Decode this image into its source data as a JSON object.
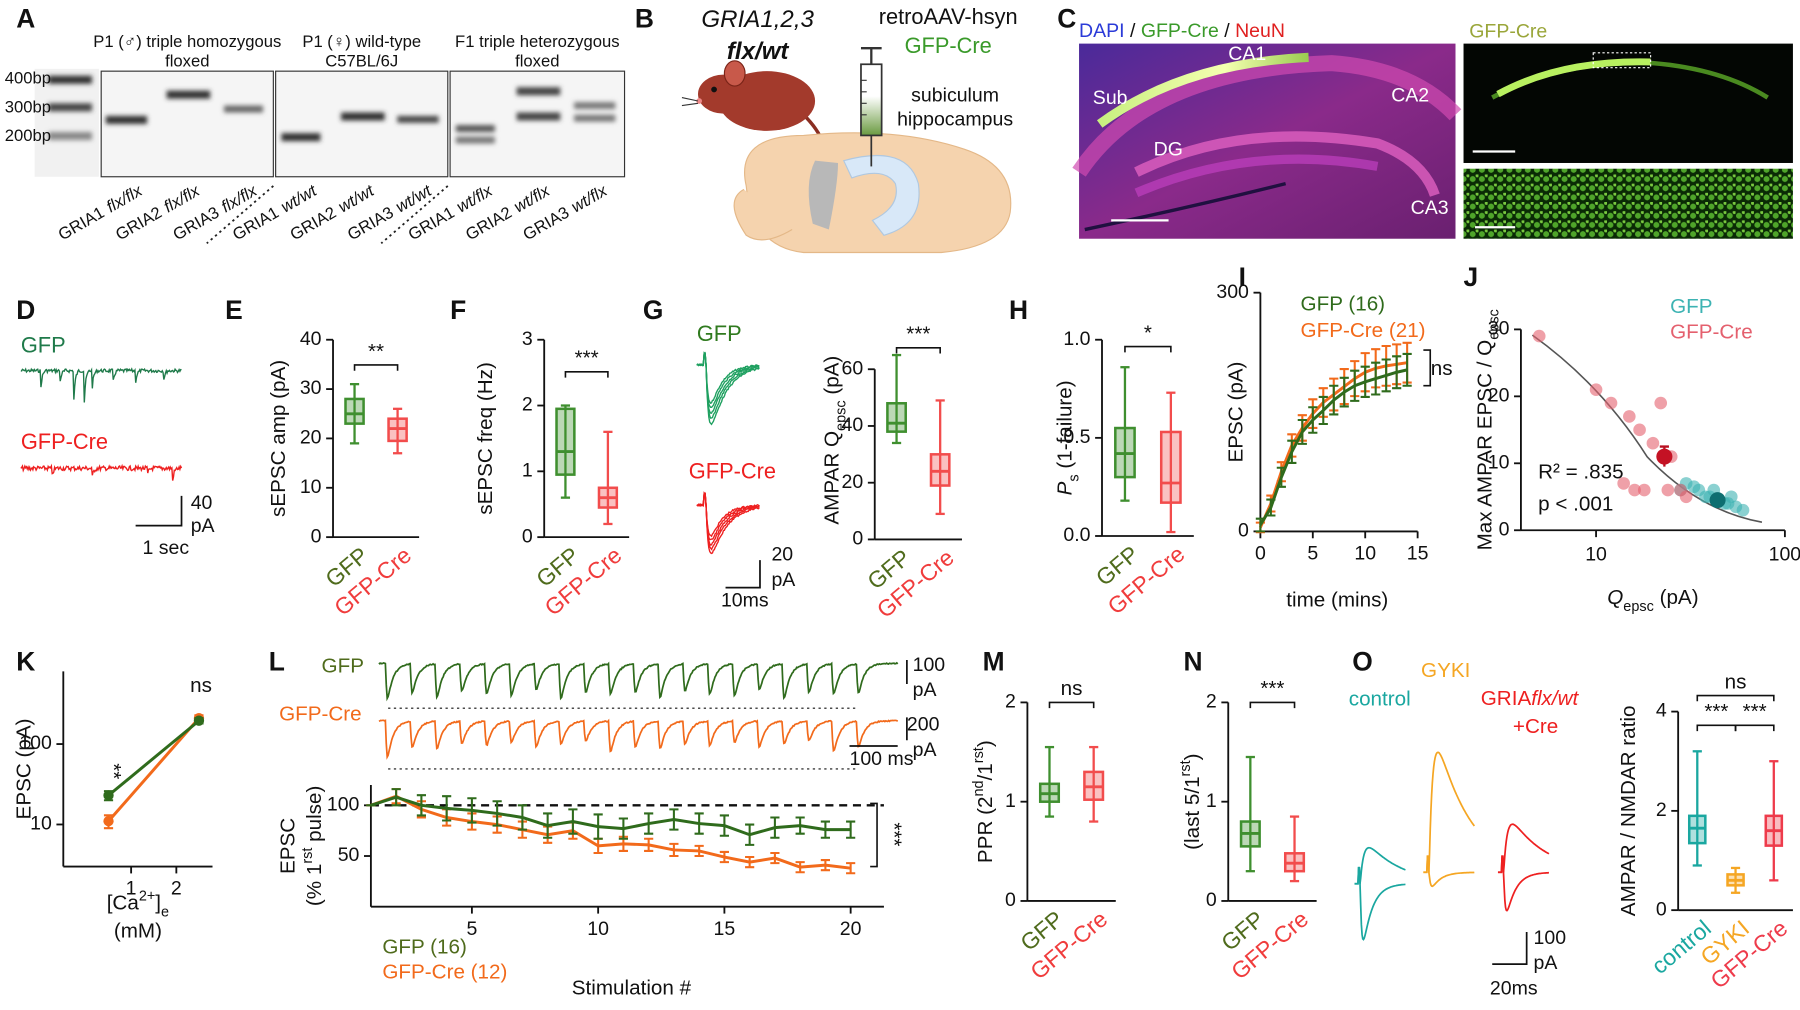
{
  "letters": [
    "A",
    "B",
    "C",
    "D",
    "E",
    "F",
    "G",
    "H",
    "I",
    "J",
    "K",
    "L",
    "M",
    "N",
    "O"
  ],
  "panels": {
    "A": {
      "ladder": [
        "400bp",
        "300bp",
        "200bp"
      ],
      "groups": [
        {
          "title": [
            "P1 (♂) triple homozygous",
            "floxed"
          ],
          "lanes": [
            {
              "gene": "GRIA1",
              "genotype": "flx/flx"
            },
            {
              "gene": "GRIA2",
              "genotype": "flx/flx"
            },
            {
              "gene": "GRIA3",
              "genotype": "flx/flx"
            }
          ]
        },
        {
          "title": [
            "P1 (♀) wild-type",
            "C57BL/6J"
          ],
          "lanes": [
            {
              "gene": "GRIA1",
              "genotype": "wt/wt"
            },
            {
              "gene": "GRIA2",
              "genotype": "wt/wt"
            },
            {
              "gene": "GRIA3",
              "genotype": "wt/wt"
            }
          ]
        },
        {
          "title": [
            "F1 triple heterozygous",
            "floxed"
          ],
          "lanes": [
            {
              "gene": "GRIA1",
              "genotype": "wt/flx"
            },
            {
              "gene": "GRIA2",
              "genotype": "wt/flx"
            },
            {
              "gene": "GRIA3",
              "genotype": "wt/flx"
            }
          ]
        }
      ]
    },
    "B": {
      "mouse": [
        "GRIA1,2,3",
        "flx/wt"
      ],
      "vector": [
        "retroAAV-hsyn",
        "GFP-Cre"
      ],
      "target": [
        "subiculum",
        "hippocampus"
      ]
    },
    "C": {
      "stain": [
        "DAPI",
        " / ",
        "GFP-Cre",
        " / ",
        "NeuN"
      ],
      "regions": [
        "CA1",
        "Sub",
        "CA2",
        "DG",
        "CA3"
      ],
      "inset_title": "GFP-Cre"
    },
    "D": {
      "traces": [
        "GFP",
        "GFP-Cre"
      ],
      "scale": [
        "40",
        "pA",
        "1 sec"
      ]
    },
    "G": {
      "traces": [
        "GFP",
        "GFP-Cre"
      ],
      "scale": [
        "20",
        "pA",
        "10ms"
      ]
    },
    "L": {
      "traces": [
        "GFP",
        "GFP-Cre"
      ],
      "scale": [
        "100",
        "pA",
        "200",
        "pA",
        "100 ms"
      ]
    },
    "O": {
      "traces": [
        "control",
        "GYKI",
        "GRIA",
        "flx/wt",
        "+Cre"
      ],
      "scale": [
        "100",
        "pA",
        "20ms"
      ]
    }
  },
  "chart_data": [
    {
      "type": "box",
      "ylabel": [
        {
          "text": "sEPSC amp (pA)"
        }
      ],
      "categories": [
        "GFP",
        "GFP-Cre"
      ],
      "colors": [
        "#3f8f2f",
        "#f24c4c"
      ],
      "label_colors": [
        "#4f6b1c",
        "#f03c3c"
      ],
      "ylim": [
        0,
        40
      ],
      "yticks": [
        0,
        10,
        20,
        30,
        40
      ],
      "boxes": [
        {
          "min": 19,
          "q1": 23,
          "median": 25,
          "q3": 28,
          "max": 31
        },
        {
          "min": 17,
          "q1": 19.5,
          "median": 22,
          "q3": 24,
          "max": 26
        }
      ],
      "significance": [
        "**"
      ]
    },
    {
      "type": "box",
      "ylabel": [
        {
          "text": "sEPSC freq (Hz)"
        }
      ],
      "categories": [
        "GFP",
        "GFP-Cre"
      ],
      "colors": [
        "#3f8f2f",
        "#f24c4c"
      ],
      "label_colors": [
        "#4f6b1c",
        "#f03c3c"
      ],
      "ylim": [
        0,
        3
      ],
      "yticks": [
        0,
        1,
        2,
        3
      ],
      "boxes": [
        {
          "min": 0.6,
          "q1": 0.95,
          "median": 1.3,
          "q3": 1.95,
          "max": 2.0
        },
        {
          "min": 0.2,
          "q1": 0.45,
          "median": 0.6,
          "q3": 0.75,
          "max": 1.6
        }
      ],
      "significance": [
        "***"
      ]
    },
    {
      "type": "box",
      "ylabel": [
        {
          "text": "AMPAR Q"
        },
        {
          "text": "epsc",
          "shift": "sub"
        },
        {
          "text": " (pA)"
        }
      ],
      "categories": [
        "GFP",
        "GFP-Cre"
      ],
      "colors": [
        "#3f8f2f",
        "#f24c4c"
      ],
      "label_colors": [
        "#4f6b1c",
        "#f03c3c"
      ],
      "ylim": [
        0,
        70
      ],
      "yticks": [
        0,
        20,
        40,
        60
      ],
      "boxes": [
        {
          "min": 34,
          "q1": 38,
          "median": 41,
          "q3": 48,
          "max": 65
        },
        {
          "min": 9,
          "q1": 19,
          "median": 24,
          "q3": 30,
          "max": 49
        }
      ],
      "significance": [
        "***"
      ]
    },
    {
      "type": "box",
      "ylabel": [
        {
          "text": "P",
          "style": "italic"
        },
        {
          "text": "s",
          "shift": "sub"
        },
        {
          "text": " (1-failure)"
        }
      ],
      "categories": [
        "GFP",
        "GFP-Cre"
      ],
      "colors": [
        "#3f8f2f",
        "#f24c4c"
      ],
      "label_colors": [
        "#4f6b1c",
        "#f03c3c"
      ],
      "ylim": [
        0,
        1
      ],
      "yticks": [
        {
          "value": 0,
          "label": "0.0"
        },
        {
          "value": 0.5,
          "label": "0.5"
        },
        {
          "value": 1,
          "label": "1.0"
        }
      ],
      "boxes": [
        {
          "min": 0.18,
          "q1": 0.3,
          "median": 0.42,
          "q3": 0.55,
          "max": 0.86
        },
        {
          "min": 0.02,
          "q1": 0.17,
          "median": 0.27,
          "q3": 0.53,
          "max": 0.73
        }
      ],
      "significance": [
        "*"
      ]
    },
    {
      "type": "line",
      "ylabel": [
        {
          "text": "EPSC (pA)"
        }
      ],
      "xlabel": [
        {
          "text": "time (mins)"
        }
      ],
      "x": [
        0,
        1,
        2,
        3,
        4,
        5,
        6,
        7,
        8,
        9,
        10,
        11,
        12,
        13,
        14
      ],
      "xlim": [
        0,
        15
      ],
      "xticks": [
        0,
        5,
        10,
        15
      ],
      "ylim": [
        0,
        300
      ],
      "yticks": [
        0,
        300
      ],
      "series": [
        {
          "name": "GFP (16)",
          "color": "#2f6b1c",
          "values": [
            8,
            30,
            68,
            100,
            125,
            140,
            152,
            165,
            175,
            183,
            188,
            192,
            196,
            200,
            203
          ],
          "errors": [
            8,
            10,
            12,
            14,
            15,
            16,
            17,
            18,
            18,
            19,
            19,
            20,
            20,
            20,
            20
          ]
        },
        {
          "name": "GFP-Cre (21)",
          "color": "#f26a1b",
          "values": [
            5,
            35,
            75,
            108,
            130,
            148,
            162,
            172,
            182,
            192,
            200,
            205,
            208,
            210,
            212
          ],
          "errors": [
            6,
            10,
            12,
            14,
            16,
            18,
            18,
            20,
            22,
            22,
            24,
            24,
            25,
            25,
            25
          ]
        }
      ],
      "annotations": [
        "ns"
      ]
    },
    {
      "type": "scatter",
      "ylabel": [
        {
          "text": "Max AMPAR EPSC / Q"
        },
        {
          "text": "epsc",
          "shift": "sub"
        }
      ],
      "xlabel": [
        {
          "text": "Q",
          "style": "italic"
        },
        {
          "text": "epsc",
          "shift": "sub"
        },
        {
          "text": " (pA)"
        }
      ],
      "xlog": true,
      "xlim": [
        4,
        100
      ],
      "xticks": [
        10,
        100
      ],
      "ylim": [
        0,
        30
      ],
      "yticks": [
        0,
        10,
        20,
        30
      ],
      "series": [
        {
          "name": "GFP",
          "color": "#3db3b3",
          "x": [
            30,
            35,
            40,
            45,
            50,
            55,
            60,
            38,
            42,
            33,
            48,
            28,
            52
          ],
          "y": [
            7,
            6,
            5,
            4.5,
            4,
            3.5,
            3,
            5,
            6,
            6.5,
            4,
            6,
            5
          ],
          "mean": {
            "x": 44,
            "y": 4.5,
            "error": 0.8
          }
        },
        {
          "name": "GFP-Cre",
          "color": "#e4606e",
          "x": [
            5,
            10,
            12,
            15,
            17,
            20,
            22,
            25,
            18,
            28,
            30,
            16,
            14,
            24
          ],
          "y": [
            29,
            21,
            19,
            17,
            15,
            13,
            19,
            11,
            6,
            6,
            5,
            6,
            7,
            6
          ],
          "mean": {
            "x": 23,
            "y": 11,
            "error": 1.5
          }
        }
      ],
      "annotations": [
        "R² = .835",
        "p < .001"
      ]
    },
    {
      "type": "line",
      "ylabel": [
        {
          "text": "EPSC (pA)"
        }
      ],
      "xlabel": [
        {
          "text": "[Ca"
        },
        {
          "text": "2+",
          "shift": "sup"
        },
        {
          "text": "]"
        },
        {
          "text": "e",
          "shift": "sub"
        }
      ],
      "xlabel_unit": "(mM)",
      "x": [
        0.5,
        2.5
      ],
      "xlim": [
        -0.5,
        2.8
      ],
      "xticks": [
        1,
        2
      ],
      "ylog": true,
      "ylim": [
        3,
        800
      ],
      "yticks": [
        10,
        100
      ],
      "series": [
        {
          "name": "GFP",
          "color": "#2f6b1c",
          "values": [
            23,
            195
          ],
          "errors": [
            3,
            15
          ]
        },
        {
          "name": "GFP-Cre",
          "color": "#f26a1b",
          "values": [
            11,
            210
          ],
          "errors": [
            2,
            18
          ]
        }
      ],
      "annotations": [
        "**",
        "ns"
      ]
    },
    {
      "type": "line",
      "ylabel": [
        {
          "text": "EPSC"
        }
      ],
      "ylabel2": [
        {
          "text": "(% 1"
        },
        {
          "text": "rst",
          "shift": "sup"
        },
        {
          "text": " pulse)"
        }
      ],
      "xlabel": [
        {
          "text": "Stimulation #"
        }
      ],
      "x": [
        1,
        2,
        3,
        4,
        5,
        6,
        7,
        8,
        9,
        10,
        11,
        12,
        13,
        14,
        15,
        16,
        17,
        18,
        19,
        20
      ],
      "xlim": [
        1,
        20
      ],
      "xticks": [
        5,
        10,
        15,
        20
      ],
      "ylim": [
        0,
        120
      ],
      "yticks": [
        50,
        100
      ],
      "reference": 100,
      "series": [
        {
          "name": "GFP (16)",
          "color": "#2f6b1c",
          "values": [
            100,
            108,
            100,
            97,
            95,
            92,
            88,
            80,
            84,
            79,
            77,
            82,
            86,
            82,
            80,
            71,
            78,
            80,
            76,
            76
          ],
          "errors": [
            0,
            8,
            10,
            12,
            12,
            12,
            12,
            12,
            12,
            12,
            10,
            10,
            10,
            10,
            10,
            10,
            10,
            8,
            8,
            8
          ]
        },
        {
          "name": "GFP-Cre (12)",
          "color": "#f26a1b",
          "values": [
            100,
            109,
            96,
            88,
            84,
            81,
            76,
            71,
            75,
            60,
            62,
            61,
            56,
            55,
            49,
            44,
            48,
            39,
            41,
            38
          ],
          "errors": [
            0,
            7,
            8,
            8,
            8,
            8,
            8,
            8,
            8,
            7,
            7,
            6,
            6,
            5,
            5,
            5,
            5,
            5,
            5,
            5
          ]
        }
      ],
      "annotations": [
        "***"
      ]
    },
    {
      "type": "box",
      "ylabel": [
        {
          "text": "PPR (2"
        },
        {
          "text": "nd",
          "shift": "sup"
        },
        {
          "text": "/1"
        },
        {
          "text": "rst",
          "shift": "sup"
        },
        {
          "text": ")"
        }
      ],
      "categories": [
        "GFP",
        "GFP-Cre"
      ],
      "colors": [
        "#3f8f2f",
        "#f24c4c"
      ],
      "label_colors": [
        "#4f6b1c",
        "#f03c3c"
      ],
      "ylim": [
        0,
        2
      ],
      "yticks": [
        0,
        1,
        2
      ],
      "boxes": [
        {
          "min": 0.85,
          "q1": 1.0,
          "median": 1.08,
          "q3": 1.18,
          "max": 1.55
        },
        {
          "min": 0.8,
          "q1": 1.02,
          "median": 1.15,
          "q3": 1.3,
          "max": 1.55
        }
      ],
      "significance": [
        "ns"
      ]
    },
    {
      "type": "box",
      "ylabel": [
        {
          "text": "(last 5/1"
        },
        {
          "text": "rst",
          "shift": "sup"
        },
        {
          "text": ")"
        }
      ],
      "categories": [
        "GFP",
        "GFP-Cre"
      ],
      "colors": [
        "#3f8f2f",
        "#f24c4c"
      ],
      "label_colors": [
        "#4f6b1c",
        "#f03c3c"
      ],
      "ylim": [
        0,
        2
      ],
      "yticks": [
        0,
        1,
        2
      ],
      "boxes": [
        {
          "min": 0.3,
          "q1": 0.55,
          "median": 0.68,
          "q3": 0.8,
          "max": 1.45
        },
        {
          "min": 0.2,
          "q1": 0.3,
          "median": 0.38,
          "q3": 0.48,
          "max": 0.85
        }
      ],
      "significance": [
        "***"
      ]
    },
    {
      "type": "box",
      "ylabel": [
        {
          "text": "AMPAR / NMDAR ratio"
        }
      ],
      "categories": [
        "control",
        "GYKI",
        "GFP-Cre"
      ],
      "colors": [
        "#1aa7a0",
        "#f5a623",
        "#ee3b4b"
      ],
      "label_colors": [
        "#1aa7a0",
        "#f5a623",
        "#ee3b4b"
      ],
      "ylim": [
        0,
        4
      ],
      "yticks": [
        0,
        2,
        4
      ],
      "boxes": [
        {
          "min": 0.9,
          "q1": 1.35,
          "median": 1.65,
          "q3": 1.9,
          "max": 3.2
        },
        {
          "min": 0.35,
          "q1": 0.5,
          "median": 0.6,
          "q3": 0.72,
          "max": 0.85
        },
        {
          "min": 0.6,
          "q1": 1.3,
          "median": 1.6,
          "q3": 1.9,
          "max": 3.0
        }
      ],
      "significance": [
        "***",
        "***",
        "ns"
      ]
    }
  ]
}
